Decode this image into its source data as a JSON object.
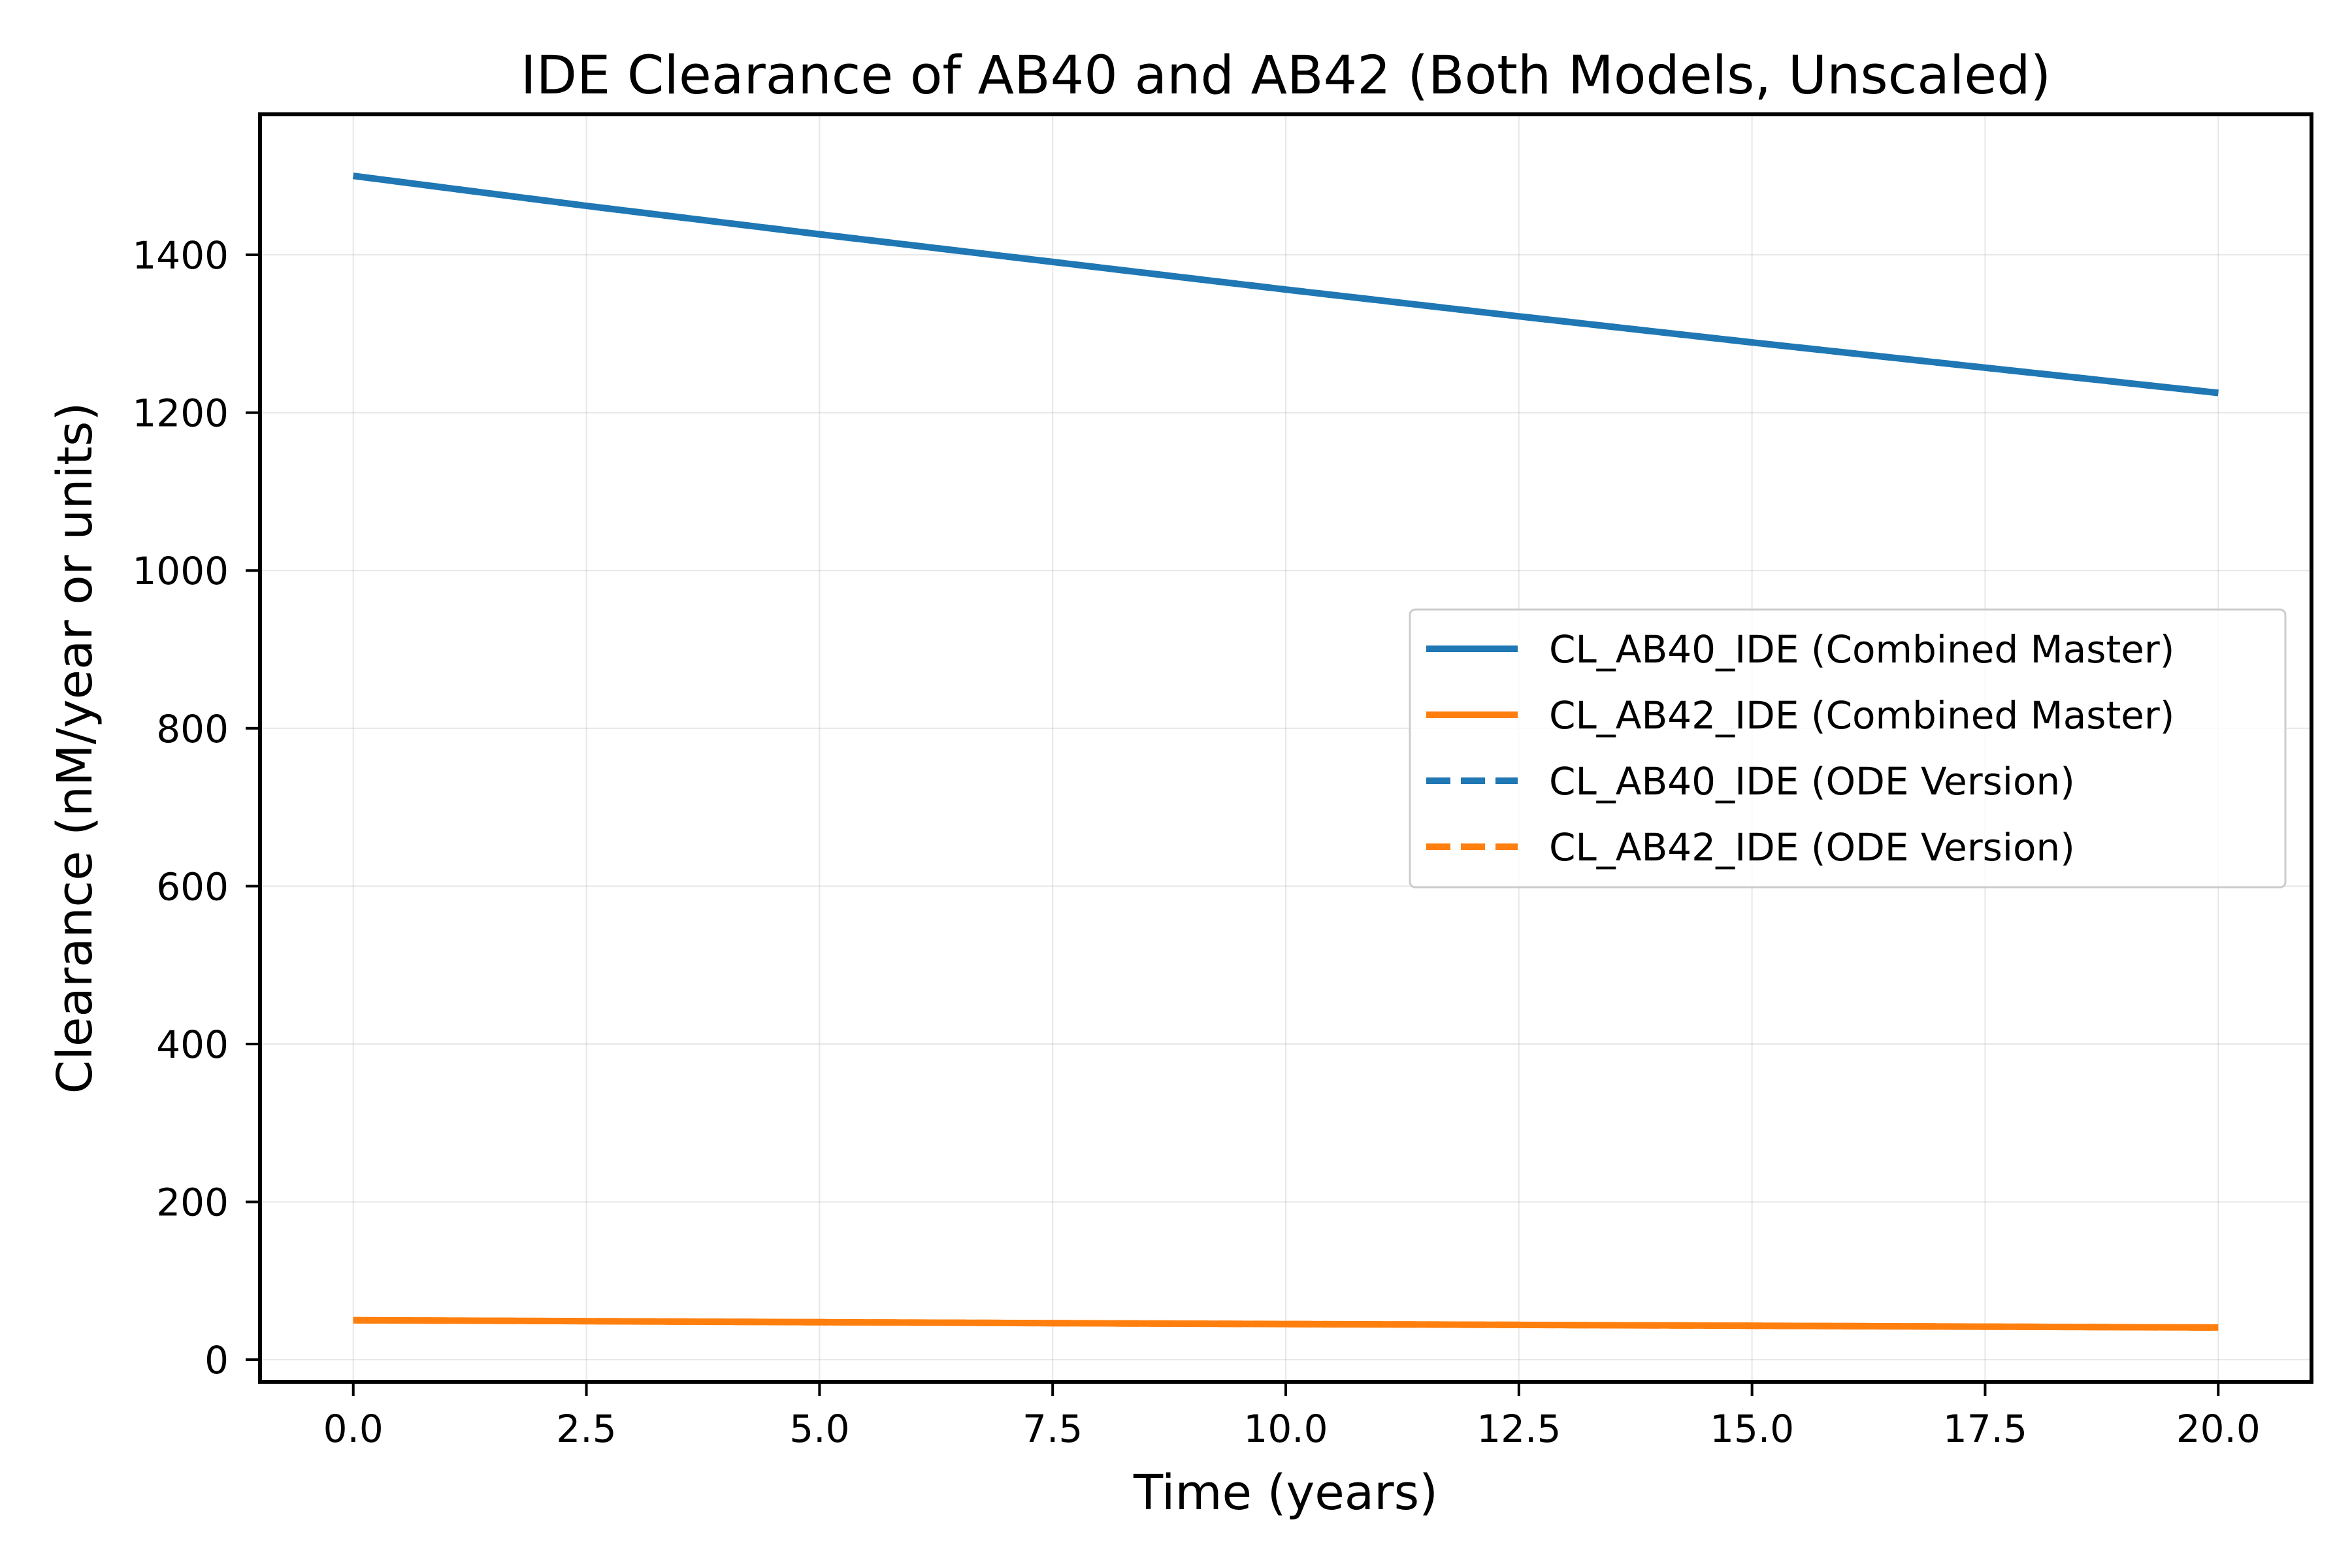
{
  "chart_data": {
    "type": "line",
    "title": "IDE Clearance of AB40 and AB42 (Both Models, Unscaled)",
    "xlabel": "Time (years)",
    "ylabel": "Clearance (nM/year or units)",
    "xlim": [
      -1.0,
      21.0
    ],
    "ylim": [
      -28,
      1578
    ],
    "grid": true,
    "legend_position": "center-right",
    "x_ticks": [
      0.0,
      2.5,
      5.0,
      7.5,
      10.0,
      12.5,
      15.0,
      17.5,
      20.0
    ],
    "x_tick_labels": [
      "0.0",
      "2.5",
      "5.0",
      "7.5",
      "10.0",
      "12.5",
      "15.0",
      "17.5",
      "20.0"
    ],
    "y_ticks": [
      0,
      200,
      400,
      600,
      800,
      1000,
      1200,
      1400
    ],
    "y_tick_labels": [
      "0",
      "200",
      "400",
      "600",
      "800",
      "1000",
      "1200",
      "1400"
    ],
    "x": [
      0,
      2.5,
      5,
      7.5,
      10,
      12.5,
      15,
      17.5,
      20
    ],
    "series": [
      {
        "name": "CL_AB40_IDE (Combined Master)",
        "color": "#1f77b4",
        "style": "solid",
        "values": [
          1500,
          1462,
          1426,
          1391,
          1356,
          1322,
          1289,
          1257,
          1225
        ]
      },
      {
        "name": "CL_AB42_IDE (Combined Master)",
        "color": "#ff7f0e",
        "style": "solid",
        "values": [
          50,
          48.8,
          47.5,
          46.3,
          45.2,
          44.1,
          43.0,
          41.9,
          40.8
        ]
      },
      {
        "name": "CL_AB40_IDE (ODE Version)",
        "color": "#1f77b4",
        "style": "dashed",
        "values": [
          1500,
          1462,
          1426,
          1391,
          1356,
          1322,
          1289,
          1257,
          1225
        ]
      },
      {
        "name": "CL_AB42_IDE (ODE Version)",
        "color": "#ff7f0e",
        "style": "dashed",
        "values": [
          50,
          48.8,
          47.5,
          46.3,
          45.2,
          44.1,
          43.0,
          41.9,
          40.8
        ]
      }
    ]
  }
}
